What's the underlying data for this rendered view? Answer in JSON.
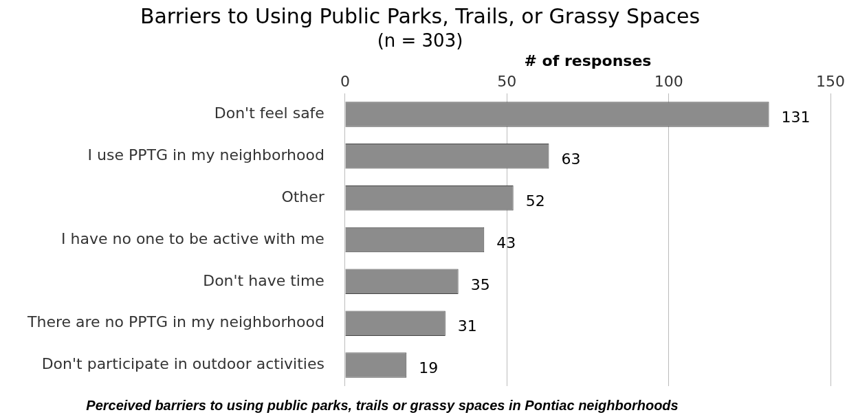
{
  "chart_data": {
    "type": "bar",
    "orientation": "horizontal",
    "title": "Barriers to Using Public Parks, Trails, or Grassy Spaces",
    "subtitle": "(n = 303)",
    "xlabel": "# of responses",
    "categories": [
      "Don't feel safe",
      "I use PPTG in my neighborhood",
      "Other",
      "I have no one to be active with me",
      "Don't have time",
      "There are no PPTG in my neighborhood",
      "Don't participate in outdoor activities"
    ],
    "values": [
      131,
      63,
      52,
      43,
      35,
      31,
      19
    ],
    "color": "#8c8c8c",
    "xlim": [
      0,
      150
    ],
    "xticks": [
      0,
      50,
      100,
      150
    ],
    "grid": "x",
    "data_labels": true,
    "legend": false,
    "annotations": [
      "Perceived barriers to using public parks, trails or grassy spaces in Pontiac neighborhoods"
    ]
  }
}
